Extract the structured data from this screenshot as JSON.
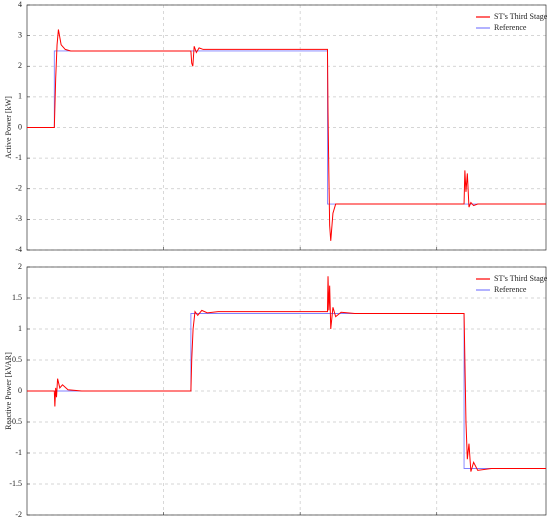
{
  "chart_data": [
    {
      "type": "line",
      "y_label": "Active Power [kW]",
      "xlim": [
        0,
        1.9
      ],
      "xticks": [
        0.5,
        1,
        1.5
      ],
      "ylim": [
        -4,
        4
      ],
      "yticks": [
        4,
        3,
        2,
        1,
        0,
        -1,
        -2,
        -3,
        -4
      ],
      "grid": true,
      "legend": "top-right",
      "series": [
        {
          "name": "ST's Third Stage",
          "color": "#ff0000",
          "x": [
            0,
            0.1,
            0.105,
            0.11,
            0.115,
            0.125,
            0.14,
            0.16,
            0.6,
            0.603,
            0.607,
            0.612,
            0.62,
            0.63,
            0.645,
            0.66,
            1.1,
            1.102,
            1.105,
            1.108,
            1.112,
            1.12,
            1.13,
            1.6,
            1.603,
            1.607,
            1.612,
            1.618,
            1.625,
            1.635,
            1.65,
            1.9
          ],
          "values": [
            0,
            0,
            1.6,
            2.7,
            3.2,
            2.7,
            2.55,
            2.5,
            2.5,
            2.1,
            2.0,
            2.65,
            2.45,
            2.6,
            2.55,
            2.55,
            2.55,
            0.5,
            -1.5,
            -3.2,
            -3.7,
            -2.8,
            -2.5,
            -2.5,
            -1.4,
            -2.1,
            -1.5,
            -2.6,
            -2.45,
            -2.55,
            -2.5,
            -2.5
          ]
        },
        {
          "name": "Reference",
          "color": "#7f7fff",
          "x": [
            0,
            0.1,
            0.1,
            1.1,
            1.1,
            1.9
          ],
          "values": [
            0,
            0,
            2.5,
            2.5,
            -2.5,
            -2.5
          ]
        }
      ]
    },
    {
      "type": "line",
      "y_label": "Reactive Power [kVAR]",
      "xlim": [
        0,
        1.9
      ],
      "xticks": [
        0.5,
        1,
        1.5
      ],
      "ylim": [
        -2,
        2
      ],
      "yticks": [
        2,
        1.5,
        1,
        0.5,
        0,
        -0.5,
        -1,
        -1.5,
        -2
      ],
      "grid": true,
      "legend": "top-right",
      "series": [
        {
          "name": "ST's Third Stage",
          "color": "#ff0000",
          "x": [
            0,
            0.1,
            0.102,
            0.105,
            0.108,
            0.112,
            0.12,
            0.13,
            0.15,
            0.2,
            0.6,
            0.603,
            0.608,
            0.615,
            0.625,
            0.64,
            0.66,
            0.7,
            1.1,
            1.102,
            1.105,
            1.108,
            1.112,
            1.12,
            1.13,
            1.15,
            1.2,
            1.6,
            1.603,
            1.607,
            1.612,
            1.618,
            1.625,
            1.635,
            1.65,
            1.7,
            1.9
          ],
          "values": [
            0,
            0,
            -0.25,
            0.05,
            -0.1,
            0.2,
            0.05,
            0.1,
            0.02,
            0,
            0,
            0.5,
            1.0,
            1.28,
            1.22,
            1.3,
            1.26,
            1.28,
            1.28,
            1.85,
            1.3,
            1.7,
            1.0,
            1.35,
            1.2,
            1.27,
            1.25,
            1.25,
            0.5,
            -0.5,
            -1.1,
            -0.85,
            -1.3,
            -1.15,
            -1.28,
            -1.25,
            -1.25
          ]
        },
        {
          "name": "Reference",
          "color": "#7f7fff",
          "x": [
            0,
            0.6,
            0.6,
            1.6,
            1.6,
            1.9
          ],
          "values": [
            0,
            0,
            1.25,
            1.25,
            -1.25,
            -1.25
          ]
        }
      ]
    }
  ]
}
